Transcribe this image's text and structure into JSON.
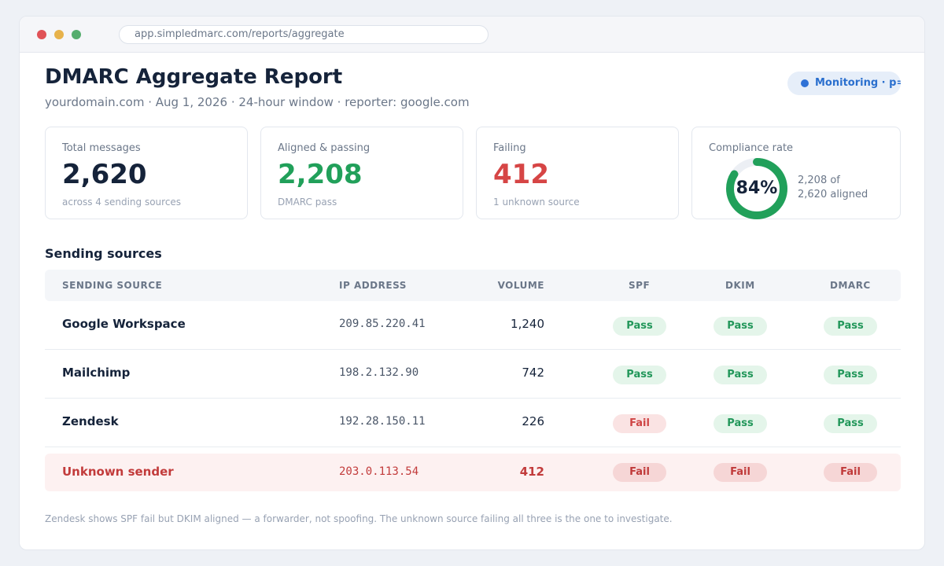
{
  "browser": {
    "url": "app.simpledmarc.com/reports/aggregate"
  },
  "header": {
    "title": "DMARC Aggregate Report",
    "subtitle": "yourdomain.com · Aug 1, 2026 · 24-hour window · reporter: google.com",
    "mode_badge": "Monitoring · p=none",
    "mode_color": "#2f72d6"
  },
  "stats": {
    "total": {
      "label": "Total messages",
      "value": "2,620",
      "note": "across 4 sending sources"
    },
    "passing": {
      "label": "Aligned & passing",
      "value": "2,208",
      "note": "DMARC pass"
    },
    "failing": {
      "label": "Failing",
      "value": "412",
      "note": "1 unknown source"
    },
    "compliance": {
      "label": "Compliance rate",
      "value": "84%",
      "fraction": 0.84,
      "detail_line1": "2,208 of",
      "detail_line2": "2,620 aligned"
    }
  },
  "colors": {
    "pass": "#21a05a",
    "fail": "#d64545",
    "accent": "#2f72d6"
  },
  "sources": {
    "title": "Sending sources",
    "columns": {
      "source": "SENDING SOURCE",
      "ip": "IP ADDRESS",
      "volume": "VOLUME",
      "spf": "SPF",
      "dkim": "DKIM",
      "dmarc": "DMARC"
    },
    "rows": [
      {
        "source": "Google Workspace",
        "ip": "209.85.220.41",
        "volume": "1,240",
        "spf": "Pass",
        "dkim": "Pass",
        "dmarc": "Pass"
      },
      {
        "source": "Mailchimp",
        "ip": "198.2.132.90",
        "volume": "742",
        "spf": "Pass",
        "dkim": "Pass",
        "dmarc": "Pass"
      },
      {
        "source": "Zendesk",
        "ip": "192.28.150.11",
        "volume": "226",
        "spf": "Fail",
        "dkim": "Pass",
        "dmarc": "Pass"
      },
      {
        "source": "Unknown sender",
        "ip": "203.0.113.54",
        "volume": "412",
        "spf": "Fail",
        "dkim": "Fail",
        "dmarc": "Fail"
      }
    ]
  },
  "footnote": "Zendesk shows SPF fail but DKIM aligned — a forwarder, not spoofing. The unknown source failing all three is the one to investigate."
}
